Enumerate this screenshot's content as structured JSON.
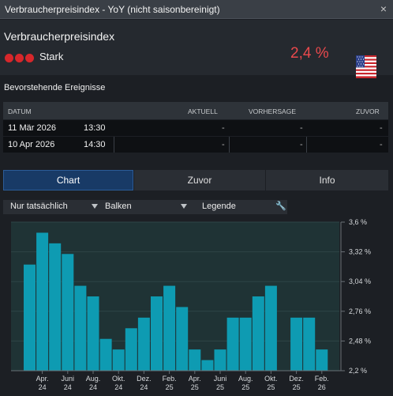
{
  "window": {
    "title": "Verbraucherpreisindex - YoY (nicht saisonbereinigt)",
    "close_label": "×"
  },
  "summary": {
    "name": "Verbraucherpreisindex",
    "importance_label": "Stark",
    "importance_level": 3,
    "importance_color": "#d7272b",
    "value": "2,4 %",
    "value_color": "#e9494c",
    "flag_icon": "us-flag-icon"
  },
  "events": {
    "title": "Bevorstehende Ereignisse",
    "columns": {
      "date": "DATUM",
      "actual": "AKTUELL",
      "forecast": "VORHERSAGE",
      "previous": "ZUVOR"
    },
    "rows": [
      {
        "date": "11 Mär 2026",
        "time": "13:30",
        "actual": "-",
        "forecast": "-",
        "previous": "-"
      },
      {
        "date": "10 Apr 2026",
        "time": "14:30",
        "actual": "-",
        "forecast": "-",
        "previous": "-"
      }
    ]
  },
  "tabs": [
    {
      "label": "Chart",
      "active": true
    },
    {
      "label": "Zuvor",
      "active": false
    },
    {
      "label": "Info",
      "active": false
    }
  ],
  "toolbar": {
    "filter_label": "Nur tatsächlich",
    "type_label": "Balken",
    "legend_label": "Legende",
    "settings_icon": "wrench-icon"
  },
  "chart_data": {
    "type": "bar",
    "bar_color": "#0e9bb2",
    "ylim": [
      2.2,
      3.6
    ],
    "yticks": [
      {
        "value": 3.6,
        "label": "3,6 %"
      },
      {
        "value": 3.32,
        "label": "3,32 %"
      },
      {
        "value": 3.04,
        "label": "3,04 %"
      },
      {
        "value": 2.76,
        "label": "2,76 %"
      },
      {
        "value": 2.48,
        "label": "2,48 %"
      },
      {
        "value": 2.2,
        "label": "2,2 %"
      }
    ],
    "values": [
      3.2,
      3.5,
      3.4,
      3.3,
      3.0,
      2.9,
      2.5,
      2.4,
      2.6,
      2.7,
      2.9,
      3.0,
      2.8,
      2.4,
      2.3,
      2.4,
      2.7,
      2.7,
      2.9,
      3.0,
      null,
      2.7,
      2.7,
      2.4
    ],
    "xticks": [
      {
        "index": 1,
        "line1": "Apr.",
        "line2": "24"
      },
      {
        "index": 3,
        "line1": "Juni",
        "line2": "24"
      },
      {
        "index": 5,
        "line1": "Aug.",
        "line2": "24"
      },
      {
        "index": 7,
        "line1": "Okt.",
        "line2": "24"
      },
      {
        "index": 9,
        "line1": "Dez.",
        "line2": "24"
      },
      {
        "index": 11,
        "line1": "Feb.",
        "line2": "25"
      },
      {
        "index": 13,
        "line1": "Apr.",
        "line2": "25"
      },
      {
        "index": 15,
        "line1": "Juni",
        "line2": "25"
      },
      {
        "index": 17,
        "line1": "Aug.",
        "line2": "25"
      },
      {
        "index": 19,
        "line1": "Okt.",
        "line2": "25"
      },
      {
        "index": 21,
        "line1": "Dez.",
        "line2": "25"
      },
      {
        "index": 23,
        "line1": "Feb.",
        "line2": "26"
      }
    ]
  }
}
